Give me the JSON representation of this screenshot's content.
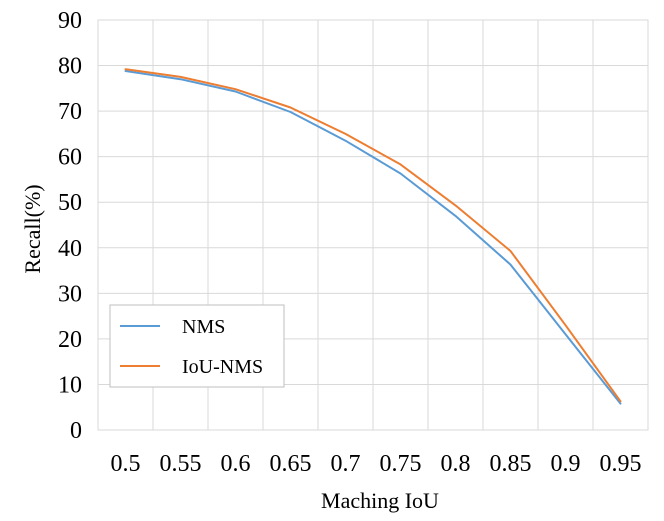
{
  "chart_data": {
    "type": "line",
    "title": "",
    "xlabel": "Maching IoU",
    "ylabel": "Recall(%)",
    "x": [
      0.5,
      0.55,
      0.6,
      0.65,
      0.7,
      0.75,
      0.8,
      0.85,
      0.9,
      0.95
    ],
    "x_tick_labels": [
      "0.5",
      "0.55",
      "0.6",
      "0.65",
      "0.7",
      "0.75",
      "0.8",
      "0.85",
      "0.9",
      "0.95"
    ],
    "y_ticks": [
      0,
      10,
      20,
      30,
      40,
      50,
      60,
      70,
      80,
      90
    ],
    "ylim": [
      0,
      90
    ],
    "grid": true,
    "legend_position": "bottom-left",
    "series": [
      {
        "name": "NMS",
        "color": "#5B9BD5",
        "values": [
          78.8,
          77.0,
          74.3,
          69.8,
          63.5,
          56.3,
          47.0,
          36.3,
          21.0,
          5.8
        ]
      },
      {
        "name": "IoU-NMS",
        "color": "#ED7D31",
        "values": [
          79.2,
          77.5,
          74.8,
          70.8,
          65.0,
          58.3,
          49.3,
          39.3,
          23.0,
          6.3
        ]
      }
    ]
  }
}
